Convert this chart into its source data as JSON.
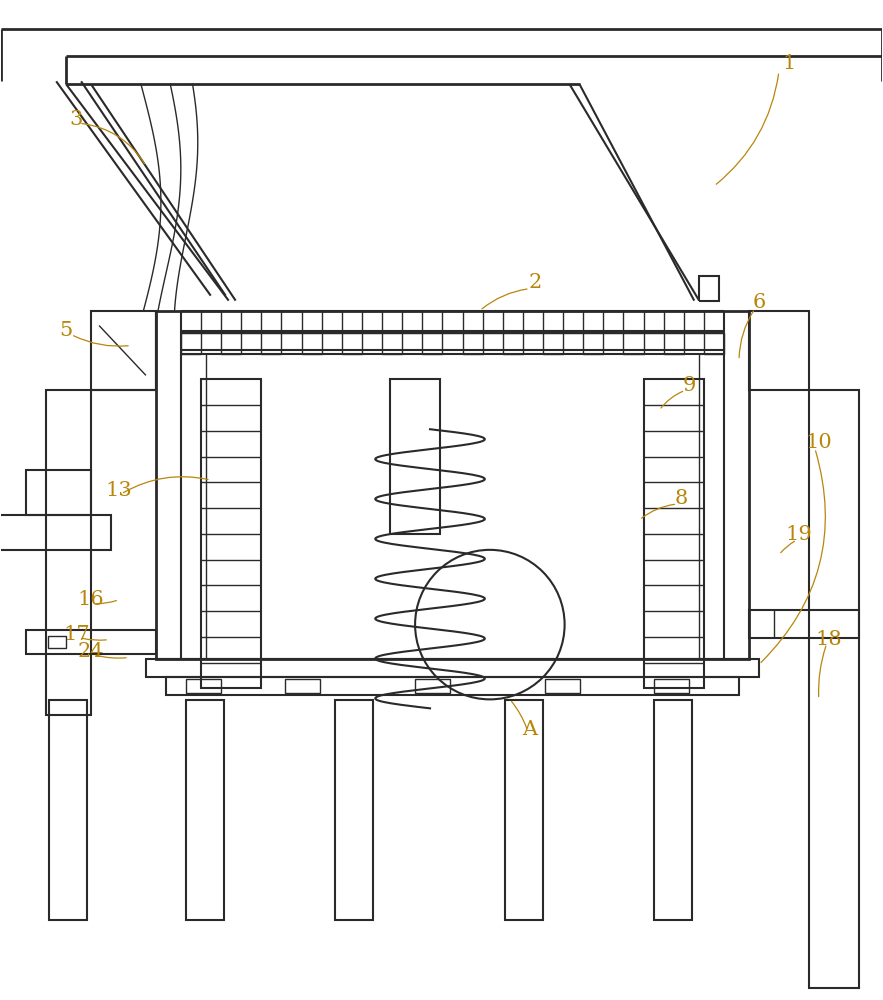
{
  "bg_color": "#ffffff",
  "line_color": "#2a2a2a",
  "label_color": "#b8860b",
  "fig_width": 8.83,
  "fig_height": 10.0
}
